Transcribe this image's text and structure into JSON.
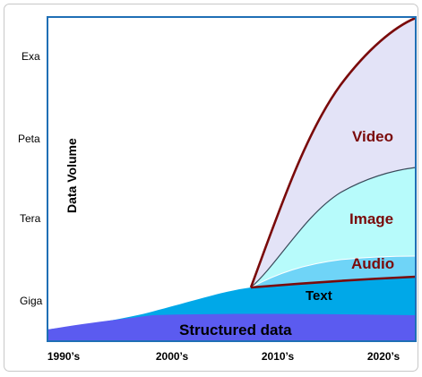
{
  "chart_data": {
    "type": "area",
    "xlabel": "",
    "ylabel": "Data Volume",
    "x_ticks": [
      "1990’s",
      "2000’s",
      "2010’s",
      "2020’s"
    ],
    "y_ticks": [
      "Giga",
      "Tera",
      "Peta",
      "Exa"
    ],
    "series": [
      {
        "name": "Structured data",
        "color": "#5b5bf0"
      },
      {
        "name": "Text",
        "color": "#00a8e8"
      },
      {
        "name": "Audio",
        "color": "#6fd4f7"
      },
      {
        "name": "Image",
        "color": "#b7fbfb"
      },
      {
        "name": "Video",
        "color": "#e3e3f7"
      }
    ],
    "label_colors": {
      "Video": "#7a0a0a",
      "Image": "#7a0a0a",
      "Audio": "#7a0a0a",
      "Text": "#000000",
      "Structured data": "#000000"
    }
  }
}
